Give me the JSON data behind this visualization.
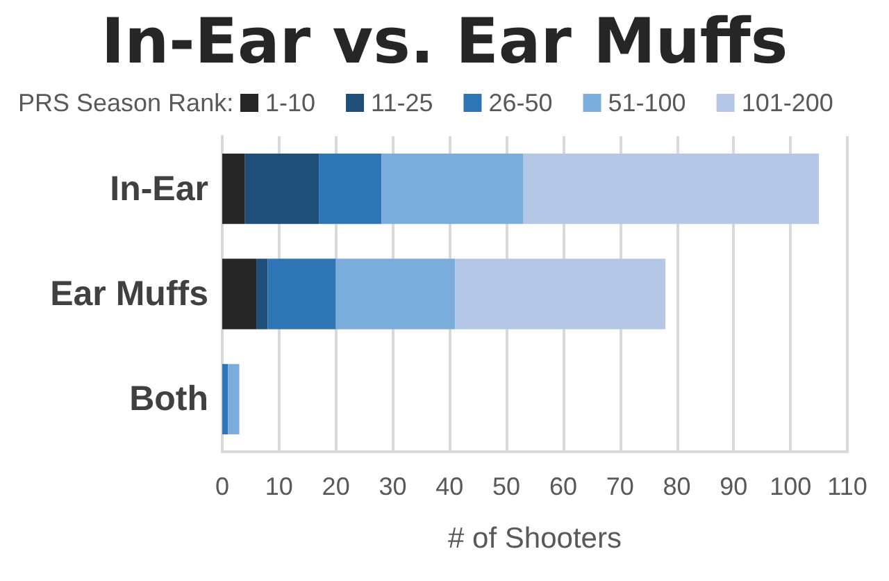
{
  "chart_data": {
    "type": "bar",
    "title": "In-Ear vs. Ear Muffs",
    "legend_title": "PRS Season Rank:",
    "xlabel": "# of Shooters",
    "orientation": "horizontal",
    "stacked": true,
    "categories": [
      "In-Ear",
      "Ear Muffs",
      "Both"
    ],
    "series": [
      {
        "name": "1-10",
        "color": "#262626",
        "values": [
          4,
          6,
          0
        ]
      },
      {
        "name": "11-25",
        "color": "#1f4e79",
        "values": [
          13,
          2,
          0
        ]
      },
      {
        "name": "26-50",
        "color": "#2e75b6",
        "values": [
          11,
          12,
          1
        ]
      },
      {
        "name": "51-100",
        "color": "#7aaddc",
        "values": [
          25,
          21,
          2
        ]
      },
      {
        "name": "101-200",
        "color": "#b4c7e7",
        "values": [
          52,
          37,
          0
        ]
      }
    ],
    "xlim": [
      0,
      110
    ],
    "xticks": [
      0,
      10,
      20,
      30,
      40,
      50,
      60,
      70,
      80,
      90,
      100,
      110
    ],
    "grid": "x",
    "legend": "top"
  }
}
